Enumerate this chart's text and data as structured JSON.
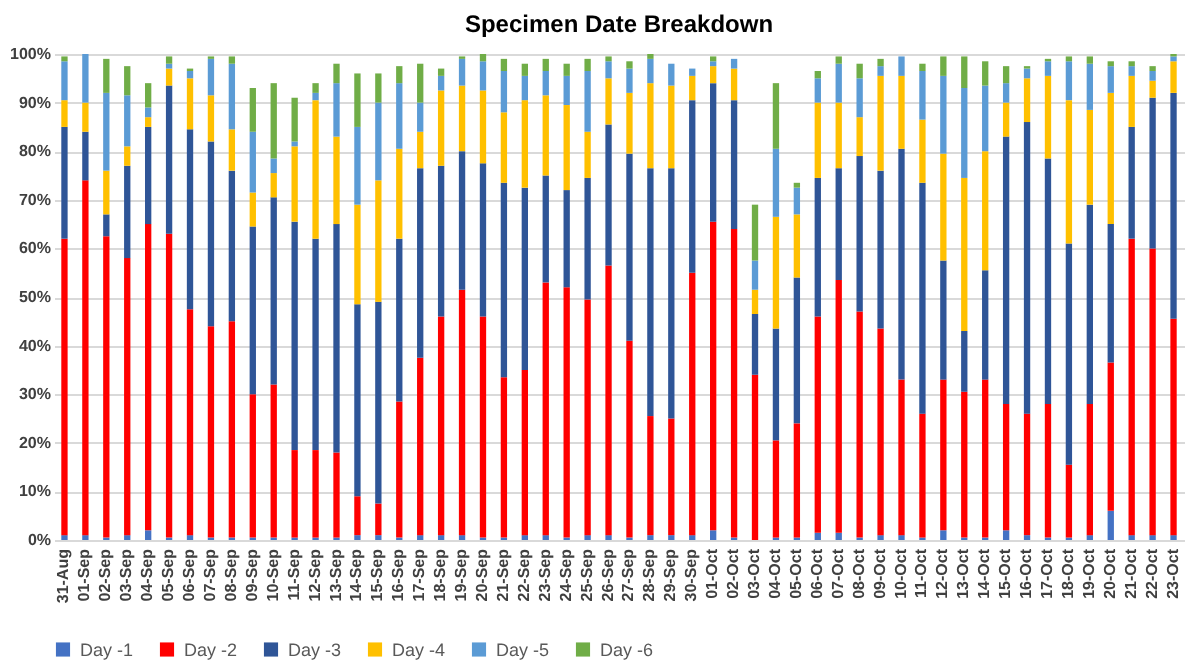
{
  "chart_data": {
    "type": "bar",
    "title": "Specimen Date Breakdown",
    "stacked": true,
    "grid": "y",
    "legend": "bottom",
    "categories": [
      "31-Aug",
      "01-Sep",
      "02-Sep",
      "03-Sep",
      "04-Sep",
      "05-Sep",
      "06-Sep",
      "07-Sep",
      "08-Sep",
      "09-Sep",
      "10-Sep",
      "11-Sep",
      "12-Sep",
      "13-Sep",
      "14-Sep",
      "15-Sep",
      "16-Sep",
      "17-Sep",
      "18-Sep",
      "19-Sep",
      "20-Sep",
      "21-Sep",
      "22-Sep",
      "23-Sep",
      "24-Sep",
      "25-Sep",
      "26-Sep",
      "27-Sep",
      "28-Sep",
      "29-Sep",
      "30-Sep",
      "01-Oct",
      "02-Oct",
      "03-Oct",
      "04-Oct",
      "05-Oct",
      "06-Oct",
      "07-Oct",
      "08-Oct",
      "09-Oct",
      "10-Oct",
      "11-Oct",
      "12-Oct",
      "13-Oct",
      "14-Oct",
      "15-Oct",
      "16-Oct",
      "17-Oct",
      "18-Oct",
      "19-Oct",
      "20-Oct",
      "21-Oct",
      "22-Oct",
      "23-Oct"
    ],
    "ylim": [
      0,
      100
    ],
    "yticks": [
      {
        "value": 0,
        "label": "0%"
      },
      {
        "value": 10,
        "label": "10%"
      },
      {
        "value": 20,
        "label": "20%"
      },
      {
        "value": 30,
        "label": "30%"
      },
      {
        "value": 40,
        "label": "40%"
      },
      {
        "value": 50,
        "label": "50%"
      },
      {
        "value": 60,
        "label": "60%"
      },
      {
        "value": 70,
        "label": "70%"
      },
      {
        "value": 80,
        "label": "80%"
      },
      {
        "value": 90,
        "label": "90%"
      },
      {
        "value": 100,
        "label": "100%"
      }
    ],
    "series": [
      {
        "name": "Day -1",
        "color": "#4472c4",
        "values": [
          1,
          1,
          0.5,
          1,
          2,
          0.5,
          1,
          0.5,
          0.5,
          0.5,
          0.5,
          0.5,
          0.5,
          0.5,
          1,
          1,
          0.5,
          1,
          1,
          1,
          0.5,
          0.5,
          1,
          1,
          0.5,
          1,
          1,
          0.5,
          1,
          1,
          1,
          2,
          0.5,
          0,
          0.5,
          0.5,
          1.5,
          1.5,
          0.5,
          1,
          1,
          0.5,
          2,
          0.5,
          0.5,
          2,
          1,
          0.5,
          0.5,
          1,
          6,
          1,
          1,
          1
        ]
      },
      {
        "name": "Day -2",
        "color": "#ff0000",
        "values": [
          61,
          73,
          62,
          57,
          63,
          62.5,
          46.5,
          43.5,
          44.5,
          29.5,
          31.5,
          18,
          18,
          17.5,
          8,
          6.5,
          28,
          36.5,
          45,
          50.5,
          45.5,
          33,
          34,
          52,
          51.5,
          48.5,
          55.5,
          40.5,
          24.5,
          24,
          54,
          63.5,
          63.5,
          34,
          20,
          23.5,
          44.5,
          52,
          46.5,
          42.5,
          32,
          25.5,
          31,
          30,
          32.5,
          26,
          25,
          27.5,
          15,
          27,
          30.5,
          61,
          59,
          44.5
        ]
      },
      {
        "name": "Day -3",
        "color": "#2f5597",
        "values": [
          23,
          10,
          4.5,
          19,
          20,
          30.5,
          37,
          38,
          31,
          34.5,
          38.5,
          47,
          43.5,
          47,
          39.5,
          41.5,
          33.5,
          39,
          31,
          28.5,
          31.5,
          40,
          37.5,
          22,
          20,
          25,
          29,
          38.5,
          51,
          51.5,
          35.5,
          28.5,
          26.5,
          12.5,
          23,
          30,
          28.5,
          23,
          32,
          32.5,
          47.5,
          47.5,
          24.5,
          12.5,
          22.5,
          55,
          60,
          50.5,
          45.5,
          41,
          28.5,
          23,
          31,
          46.5
        ]
      },
      {
        "name": "Day -4",
        "color": "#ffc000",
        "values": [
          5.5,
          6,
          9,
          4,
          2,
          3.5,
          10.5,
          9.5,
          8.5,
          7,
          5,
          15.5,
          28.5,
          18,
          20.5,
          25,
          18.5,
          7.5,
          15.5,
          13.5,
          15,
          14.5,
          18,
          16.5,
          17.5,
          9.5,
          9.5,
          12.5,
          17.5,
          17,
          5,
          3.5,
          6.5,
          5,
          23,
          13,
          15.5,
          13.5,
          8,
          19.5,
          15,
          13,
          22,
          31.5,
          24.5,
          7,
          9,
          17,
          29.5,
          19.5,
          27,
          10.5,
          3.5,
          6.5
        ]
      },
      {
        "name": "Day -5",
        "color": "#5b9bd5",
        "values": [
          8,
          10,
          16,
          10.5,
          2,
          1,
          1.5,
          7.5,
          13.5,
          12.5,
          3,
          1,
          1.5,
          11,
          16,
          16,
          13.5,
          6,
          3,
          5.5,
          6,
          8.5,
          5,
          5,
          6,
          12.5,
          3.5,
          5,
          5,
          4.5,
          1.5,
          1,
          2,
          6,
          14,
          5.5,
          5,
          8,
          8,
          2,
          4,
          10,
          16,
          18.5,
          13.5,
          4,
          2,
          3,
          8,
          9.5,
          5.5,
          2,
          2,
          1
        ]
      },
      {
        "name": "Day -6",
        "color": "#70ad47",
        "values": [
          1,
          0,
          7,
          6,
          5,
          1.5,
          0.5,
          0.5,
          1.5,
          9,
          15.5,
          9,
          2,
          4,
          11,
          6,
          3.5,
          8,
          1.5,
          0.5,
          1.5,
          2.5,
          2.5,
          2.5,
          2.5,
          2.5,
          1,
          1.5,
          1,
          0,
          0,
          1,
          0,
          11.5,
          13.5,
          1,
          1.5,
          1.5,
          3,
          1.5,
          0,
          1.5,
          4,
          6.5,
          5,
          3.5,
          0.5,
          0.5,
          1,
          1.5,
          1,
          1,
          1,
          0.5
        ]
      }
    ]
  }
}
